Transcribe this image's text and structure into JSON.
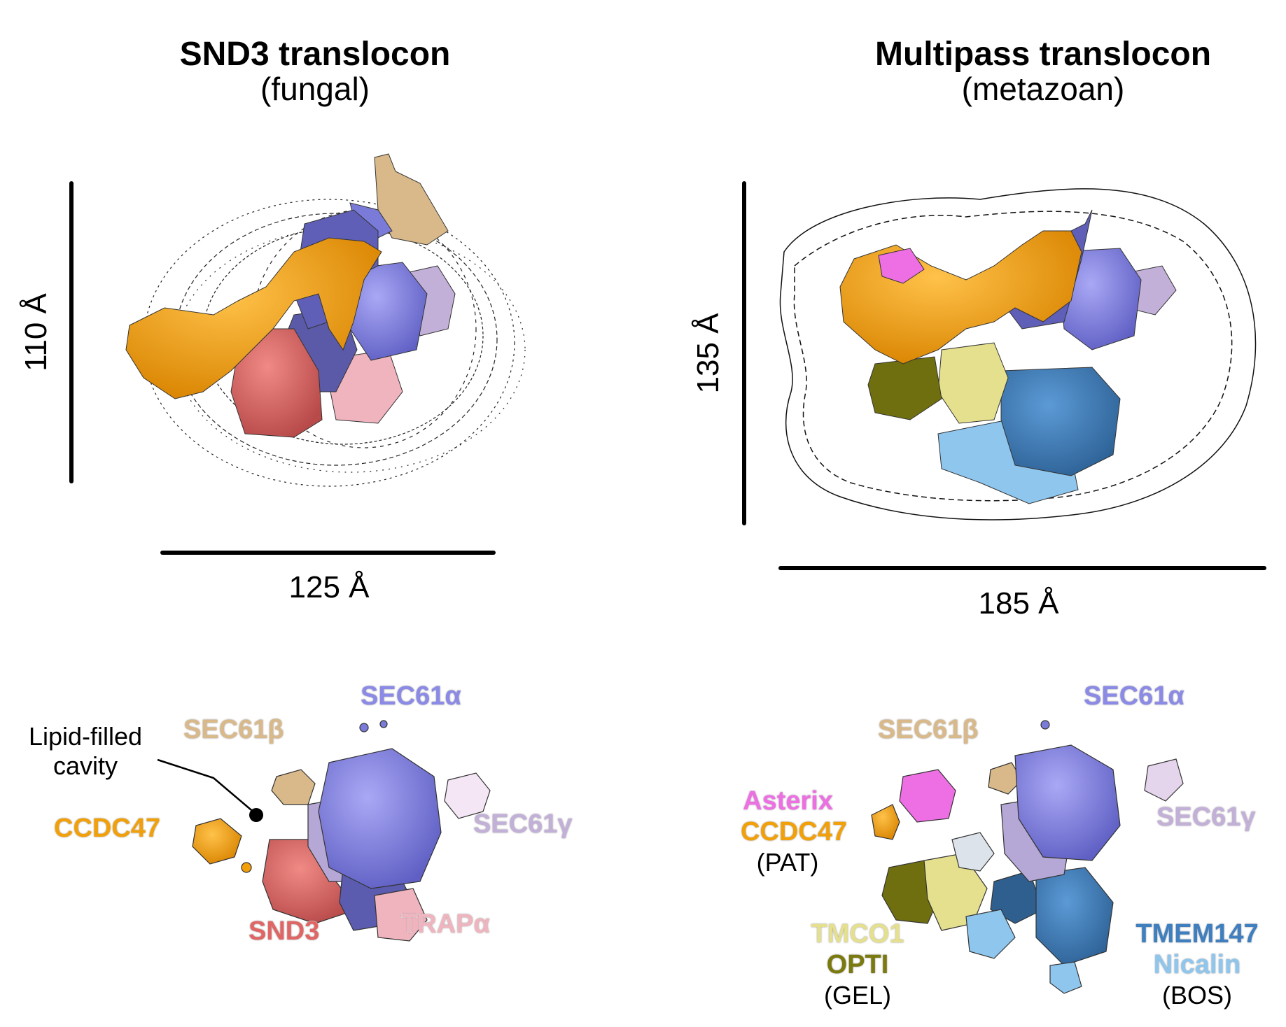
{
  "left_panel": {
    "title": "SND3 translocon",
    "subtitle": "(fungal)",
    "vertical_scale": "110 Å",
    "horizontal_scale": "125 Å",
    "labels": {
      "sec61a": "SEC61α",
      "sec61b": "SEC61β",
      "sec61g": "SEC61γ",
      "ccdc47": "CCDC47",
      "snd3": "SND3",
      "trapa": "TRAPα",
      "cavity_line1": "Lipid-filled",
      "cavity_line2": "cavity"
    }
  },
  "right_panel": {
    "title": "Multipass translocon",
    "subtitle": "(metazoan)",
    "vertical_scale": "135 Å",
    "horizontal_scale": "185 Å",
    "labels": {
      "sec61a": "SEC61α",
      "sec61b": "SEC61β",
      "sec61g": "SEC61γ",
      "asterix": "Asterix",
      "ccdc47": "CCDC47",
      "pat": "(PAT)",
      "tmco1": "TMCO1",
      "opti": "OPTI",
      "gel": "(GEL)",
      "tmem147": "TMEM147",
      "nicalin": "Nicalin",
      "bos": "(BOS)"
    }
  },
  "colors": {
    "sec61a": "#8b8ae6",
    "sec61b": "#d9b98a",
    "sec61g": "#c3b0d8",
    "ccdc47": "#f2a00a",
    "snd3": "#e06666",
    "trapa": "#f0b4bf",
    "asterix": "#ee6fe3",
    "tmco1": "#e5e08e",
    "opti": "#7a7a10",
    "tmem147": "#3f7fbf",
    "nicalin": "#8ec6ee"
  }
}
